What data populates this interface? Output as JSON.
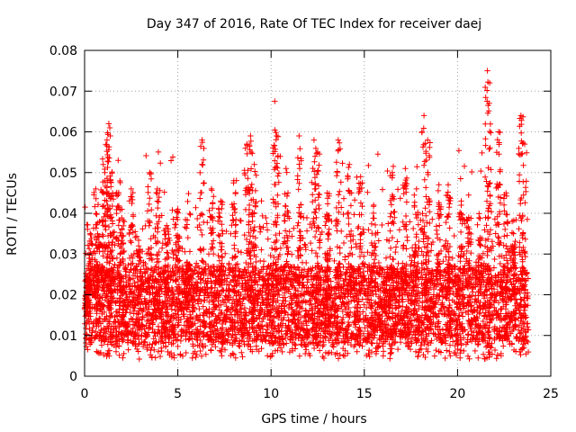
{
  "chart_data": {
    "type": "scatter",
    "title": "Day 347 of 2016, Rate Of TEC Index for receiver daej",
    "xlabel": "GPS time / hours",
    "ylabel": "ROTI / TECUs",
    "xlim": [
      0,
      25
    ],
    "ylim": [
      0,
      0.08
    ],
    "xticks": [
      0,
      5,
      10,
      15,
      20,
      25
    ],
    "xtick_labels": [
      "0",
      "5",
      "10",
      "15",
      "20",
      "25"
    ],
    "yticks": [
      0,
      0.01,
      0.02,
      0.03,
      0.04,
      0.05,
      0.06,
      0.07,
      0.08
    ],
    "ytick_labels": [
      "0",
      "0.01",
      "0.02",
      "0.03",
      "0.04",
      "0.05",
      "0.06",
      "0.07",
      "0.08"
    ],
    "grid": true,
    "marker": "+",
    "marker_color": "#ff0000",
    "series": [
      {
        "name": "ROTI",
        "x": [
          0.1,
          0.2,
          0.3,
          0.5,
          0.6,
          0.8,
          1.0,
          1.2,
          1.3,
          1.35,
          1.5,
          1.8,
          2.0,
          2.5,
          2.9,
          3.5,
          3.9,
          4.4,
          5.0,
          5.5,
          6.3,
          6.8,
          7.3,
          8.0,
          8.7,
          8.9,
          9.1,
          10.2,
          10.3,
          10.8,
          11.5,
          12.3,
          12.5,
          13.0,
          13.6,
          14.2,
          14.8,
          15.5,
          16.5,
          17.2,
          17.8,
          18.2,
          18.4,
          19.0,
          19.5,
          20.2,
          20.6,
          21.2,
          21.6,
          21.7,
          22.2,
          22.6,
          23.0,
          23.4,
          23.6
        ],
        "y": [
          0.015,
          0.024,
          0.035,
          0.02,
          0.046,
          0.038,
          0.052,
          0.058,
          0.062,
          0.061,
          0.045,
          0.053,
          0.041,
          0.046,
          0.032,
          0.05,
          0.046,
          0.037,
          0.041,
          0.028,
          0.058,
          0.046,
          0.043,
          0.048,
          0.057,
          0.059,
          0.052,
          0.0675,
          0.059,
          0.051,
          0.059,
          0.058,
          0.055,
          0.045,
          0.058,
          0.052,
          0.049,
          0.042,
          0.05,
          0.051,
          0.046,
          0.064,
          0.058,
          0.047,
          0.047,
          0.043,
          0.039,
          0.034,
          0.075,
          0.067,
          0.06,
          0.045,
          0.035,
          0.064,
          0.057
        ]
      }
    ],
    "density_profile": {
      "x_range": [
        0.0,
        23.8
      ],
      "base_value_range": [
        0.005,
        0.03
      ],
      "dense_band": [
        0.008,
        0.027
      ]
    }
  }
}
